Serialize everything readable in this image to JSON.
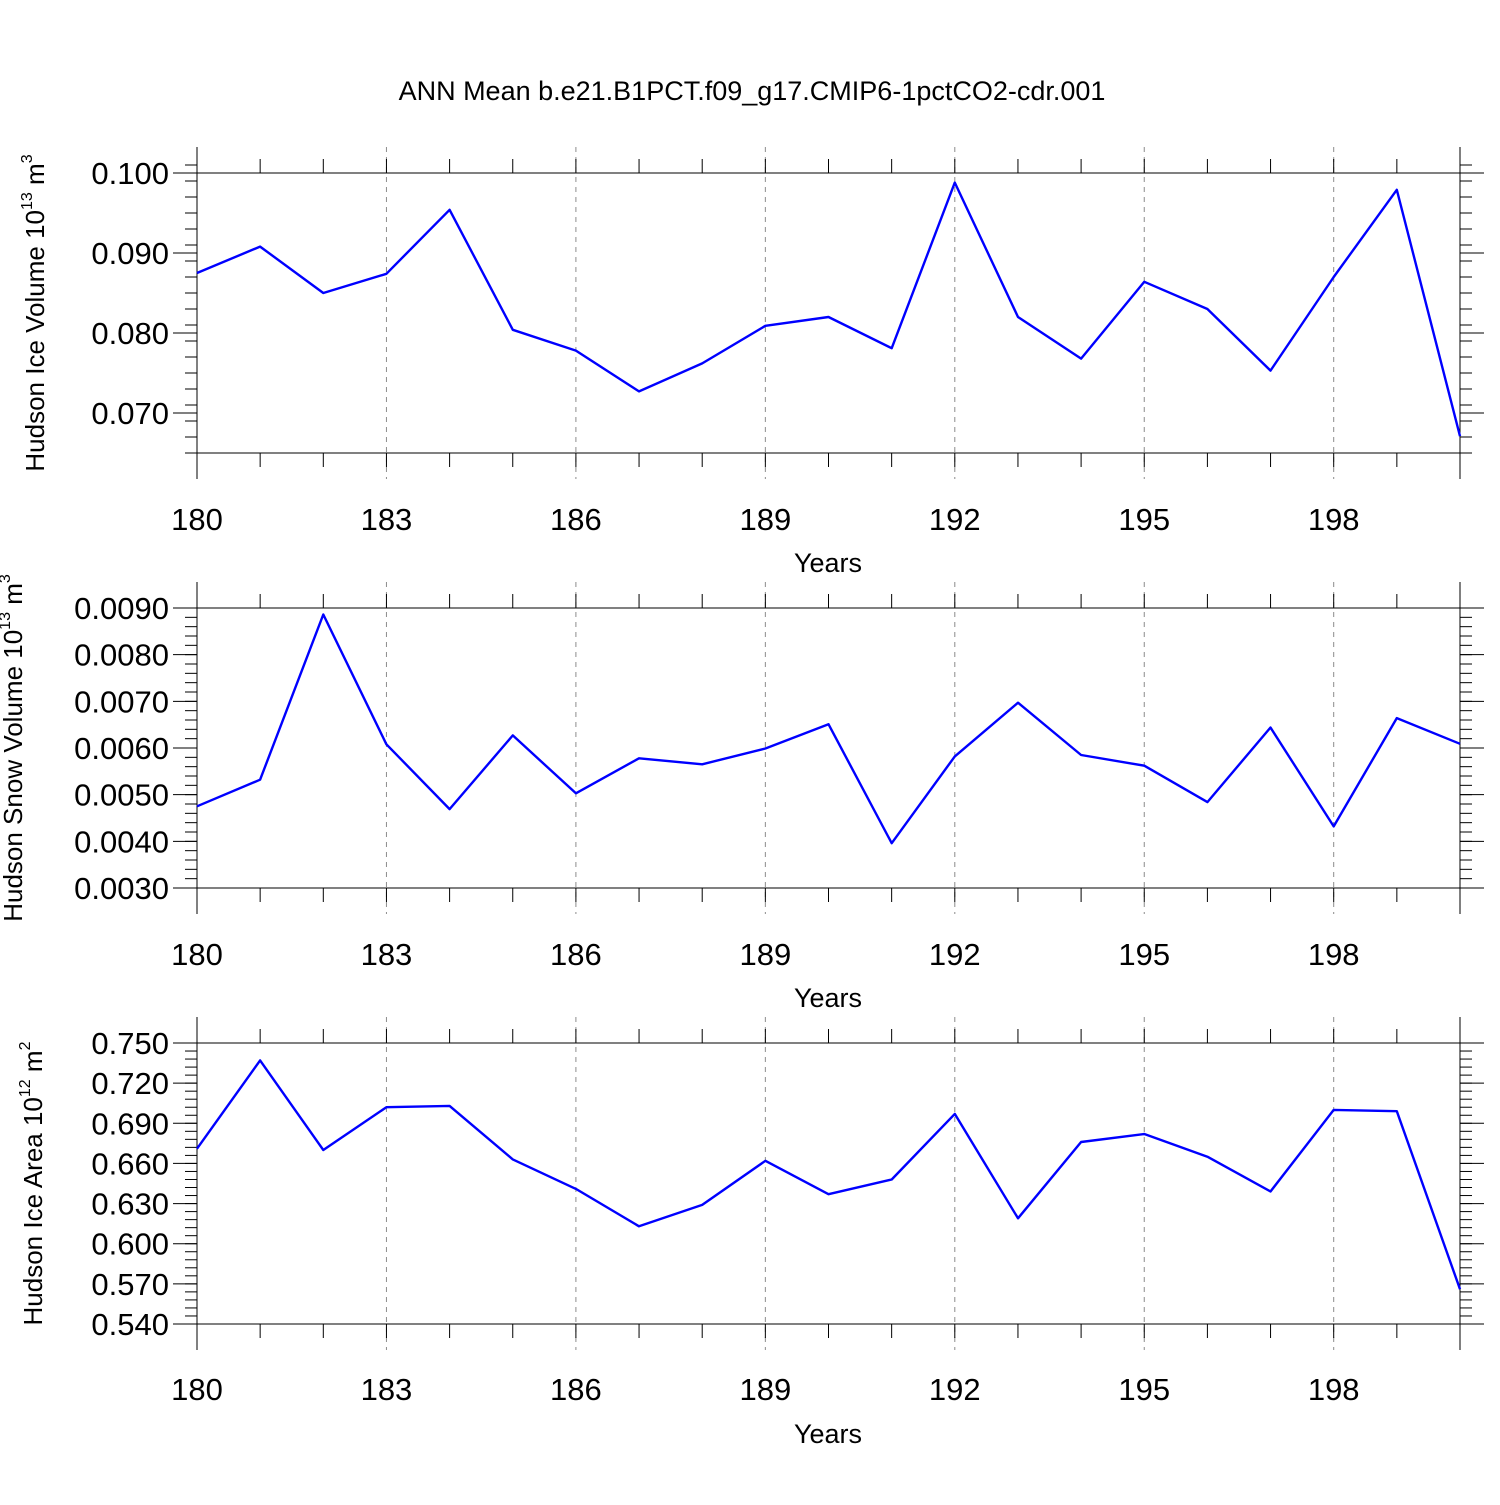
{
  "title": "ANN Mean b.e21.B1PCT.f09_g17.CMIP6-1pctCO2-cdr.001",
  "colors": {
    "line": "#0000ff",
    "grid": "#8c8c8c",
    "axis": "#000000"
  },
  "chart_data": [
    {
      "type": "line",
      "xlabel": "Years",
      "ylabel": {
        "base": "Hudson Ice Volume 10",
        "exp": "13",
        "unit": " m",
        "unit_exp": "3"
      },
      "x": [
        180,
        181,
        182,
        183,
        184,
        185,
        186,
        187,
        188,
        189,
        190,
        191,
        192,
        193,
        194,
        195,
        196,
        197,
        198,
        199,
        200
      ],
      "values": [
        0.0875,
        0.0908,
        0.085,
        0.0874,
        0.0954,
        0.0804,
        0.0778,
        0.0727,
        0.0762,
        0.0809,
        0.082,
        0.0781,
        0.0988,
        0.082,
        0.0768,
        0.0864,
        0.083,
        0.0753,
        0.087,
        0.0979,
        0.0671
      ],
      "xlim": [
        180,
        200
      ],
      "ylim": [
        0.065,
        0.1
      ],
      "xticks": [
        180,
        183,
        186,
        189,
        192,
        195,
        198
      ],
      "xtick_labels": [
        "180",
        "183",
        "186",
        "189",
        "192",
        "195",
        "198"
      ],
      "yticks": [
        0.07,
        0.08,
        0.09,
        0.1
      ],
      "ytick_labels": [
        "0.070",
        "0.080",
        "0.090",
        "0.100"
      ],
      "yminor_step": 0.002
    },
    {
      "type": "line",
      "xlabel": "Years",
      "ylabel": {
        "base": "Hudson Snow Volume 10",
        "exp": "13",
        "unit": " m",
        "unit_exp": "3"
      },
      "x": [
        180,
        181,
        182,
        183,
        184,
        185,
        186,
        187,
        188,
        189,
        190,
        191,
        192,
        193,
        194,
        195,
        196,
        197,
        198,
        199,
        200
      ],
      "values": [
        0.00475,
        0.00532,
        0.00886,
        0.00608,
        0.00469,
        0.00627,
        0.00503,
        0.00578,
        0.00565,
        0.00599,
        0.00651,
        0.00396,
        0.00582,
        0.00697,
        0.00585,
        0.00562,
        0.00484,
        0.00644,
        0.00432,
        0.00664,
        0.00609
      ],
      "xlim": [
        180,
        200
      ],
      "ylim": [
        0.003,
        0.009
      ],
      "xticks": [
        180,
        183,
        186,
        189,
        192,
        195,
        198
      ],
      "xtick_labels": [
        "180",
        "183",
        "186",
        "189",
        "192",
        "195",
        "198"
      ],
      "yticks": [
        0.003,
        0.004,
        0.005,
        0.006,
        0.007,
        0.008,
        0.009
      ],
      "ytick_labels": [
        "0.0030",
        "0.0040",
        "0.0050",
        "0.0060",
        "0.0070",
        "0.0080",
        "0.0090"
      ],
      "yminor_step": 0.0002
    },
    {
      "type": "line",
      "xlabel": "Years",
      "ylabel": {
        "base": "Hudson Ice Area 10",
        "exp": "12",
        "unit": " m",
        "unit_exp": "2"
      },
      "x": [
        180,
        181,
        182,
        183,
        184,
        185,
        186,
        187,
        188,
        189,
        190,
        191,
        192,
        193,
        194,
        195,
        196,
        197,
        198,
        199,
        200
      ],
      "values": [
        0.671,
        0.737,
        0.67,
        0.702,
        0.703,
        0.663,
        0.641,
        0.613,
        0.629,
        0.662,
        0.637,
        0.648,
        0.697,
        0.619,
        0.676,
        0.682,
        0.665,
        0.639,
        0.7,
        0.699,
        0.566
      ],
      "xlim": [
        180,
        200
      ],
      "ylim": [
        0.54,
        0.75
      ],
      "xticks": [
        180,
        183,
        186,
        189,
        192,
        195,
        198
      ],
      "xtick_labels": [
        "180",
        "183",
        "186",
        "189",
        "192",
        "195",
        "198"
      ],
      "yticks": [
        0.54,
        0.57,
        0.6,
        0.63,
        0.66,
        0.69,
        0.72,
        0.75
      ],
      "ytick_labels": [
        "0.540",
        "0.570",
        "0.600",
        "0.630",
        "0.660",
        "0.690",
        "0.720",
        "0.750"
      ],
      "yminor_step": 0.006
    }
  ]
}
